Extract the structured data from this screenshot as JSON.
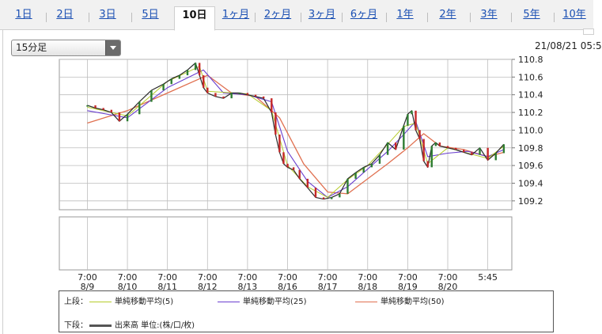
{
  "tabs": [
    {
      "label": "1日"
    },
    {
      "label": "2日"
    },
    {
      "label": "3日"
    },
    {
      "label": "5日"
    },
    {
      "label": "10日",
      "active": true
    },
    {
      "label": "1ヶ月"
    },
    {
      "label": "2ヶ月"
    },
    {
      "label": "3ヶ月"
    },
    {
      "label": "6ヶ月"
    },
    {
      "label": "1年"
    },
    {
      "label": "2年"
    },
    {
      "label": "3年"
    },
    {
      "label": "5年"
    },
    {
      "label": "10年"
    }
  ],
  "interval_select": {
    "value": "15分足"
  },
  "timestamp": "21/08/21 05:5",
  "colors": {
    "price": "#2a2a2a",
    "up": "#2e7d32",
    "down": "#c62828",
    "ma5": "#b5cc2a",
    "ma25": "#6a3fcf",
    "ma50": "#e07050",
    "grid": "#bdbdbd"
  },
  "legend": {
    "upper_label": "上段：",
    "lower_label": "下段：",
    "ma5": "単純移動平均(5)",
    "ma25": "単純移動平均(25)",
    "ma50": "単純移動平均(50)",
    "volume": "出来高 単位:(株/口/枚)"
  },
  "chart_data": {
    "type": "line",
    "subtype": "candlestick-with-moving-averages",
    "grid": true,
    "y_axis_position": "right",
    "ylim": [
      109.1,
      110.8
    ],
    "y_ticks": [
      "110.8",
      "110.6",
      "110.4",
      "110.2",
      "110.0",
      "109.8",
      "109.6",
      "109.4",
      "109.2"
    ],
    "x_tick_labels": [
      {
        "time": "7:00",
        "date": "8/9"
      },
      {
        "time": "7:00",
        "date": "8/10"
      },
      {
        "time": "7:00",
        "date": "8/11"
      },
      {
        "time": "7:00",
        "date": "8/12"
      },
      {
        "time": "7:00",
        "date": "8/13"
      },
      {
        "time": "7:00",
        "date": "8/16"
      },
      {
        "time": "7:00",
        "date": "8/17"
      },
      {
        "time": "7:00",
        "date": "8/18"
      },
      {
        "time": "7:00",
        "date": "8/19"
      },
      {
        "time": "7:00",
        "date": "8/20"
      },
      {
        "time": "5:45",
        "date": ""
      }
    ],
    "x_domain": [
      -0.7,
      10.6
    ],
    "price": {
      "x": [
        0.0,
        0.2,
        0.4,
        0.6,
        0.8,
        1.0,
        1.3,
        1.6,
        1.9,
        2.1,
        2.3,
        2.5,
        2.7,
        2.8,
        2.9,
        3.0,
        3.2,
        3.4,
        3.6,
        3.8,
        4.0,
        4.2,
        4.4,
        4.6,
        4.7,
        4.8,
        4.9,
        5.0,
        5.15,
        5.3,
        5.5,
        5.7,
        5.9,
        6.1,
        6.3,
        6.5,
        6.7,
        6.9,
        7.1,
        7.3,
        7.5,
        7.7,
        7.9,
        8.0,
        8.1,
        8.2,
        8.3,
        8.4,
        8.5,
        8.6,
        8.7,
        8.8,
        9.0,
        9.2,
        9.4,
        9.6,
        9.8,
        10.0,
        10.2,
        10.4
      ],
      "close": [
        110.28,
        110.25,
        110.23,
        110.2,
        110.1,
        110.18,
        110.32,
        110.45,
        110.52,
        110.58,
        110.62,
        110.68,
        110.76,
        110.62,
        110.48,
        110.42,
        110.38,
        110.36,
        110.42,
        110.42,
        110.4,
        110.38,
        110.36,
        110.2,
        109.95,
        109.75,
        109.62,
        109.58,
        109.55,
        109.45,
        109.35,
        109.24,
        109.22,
        109.24,
        109.28,
        109.45,
        109.52,
        109.58,
        109.62,
        109.72,
        109.86,
        109.78,
        110.05,
        110.18,
        110.22,
        110.0,
        109.9,
        109.65,
        109.58,
        109.82,
        109.86,
        109.82,
        109.8,
        109.78,
        109.75,
        109.72,
        109.8,
        109.66,
        109.74,
        109.84
      ]
    },
    "ma5": {
      "x": [
        0.0,
        1.0,
        2.0,
        2.8,
        3.0,
        4.0,
        4.6,
        5.0,
        5.5,
        6.0,
        6.5,
        7.0,
        7.5,
        7.9,
        8.2,
        8.5,
        9.0,
        9.5,
        10.0,
        10.4
      ],
      "values": [
        110.26,
        110.16,
        110.55,
        110.72,
        110.44,
        110.41,
        110.22,
        109.6,
        109.36,
        109.24,
        109.44,
        109.6,
        109.84,
        110.04,
        110.08,
        109.62,
        109.8,
        109.74,
        109.68,
        109.82
      ]
    },
    "ma25": {
      "x": [
        0.0,
        1.0,
        2.0,
        2.9,
        3.4,
        4.0,
        4.6,
        5.0,
        5.5,
        6.0,
        6.5,
        7.0,
        7.5,
        7.9,
        8.2,
        8.5,
        9.0,
        9.5,
        10.0,
        10.4
      ],
      "values": [
        110.22,
        110.14,
        110.48,
        110.68,
        110.42,
        110.4,
        110.32,
        109.76,
        109.42,
        109.24,
        109.36,
        109.56,
        109.76,
        109.95,
        110.1,
        109.7,
        109.74,
        109.76,
        109.7,
        109.78
      ]
    },
    "ma50": {
      "x": [
        0.0,
        1.0,
        2.0,
        3.0,
        3.6,
        4.2,
        4.8,
        5.4,
        6.0,
        6.5,
        7.0,
        7.5,
        8.0,
        8.4,
        8.8,
        9.4,
        10.0,
        10.4
      ],
      "values": [
        110.08,
        110.22,
        110.42,
        110.62,
        110.42,
        110.38,
        110.14,
        109.62,
        109.3,
        109.28,
        109.45,
        109.62,
        109.8,
        109.96,
        109.82,
        109.78,
        109.7,
        109.75
      ]
    }
  }
}
